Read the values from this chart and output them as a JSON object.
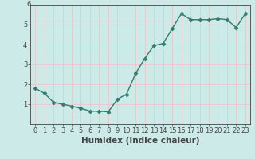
{
  "x": [
    0,
    1,
    2,
    3,
    4,
    5,
    6,
    7,
    8,
    9,
    10,
    11,
    12,
    13,
    14,
    15,
    16,
    17,
    18,
    19,
    20,
    21,
    22,
    23
  ],
  "y": [
    1.8,
    1.55,
    1.1,
    1.0,
    0.9,
    0.8,
    0.65,
    0.65,
    0.62,
    1.25,
    1.5,
    2.55,
    3.3,
    3.95,
    4.05,
    4.8,
    5.55,
    5.25,
    5.25,
    5.25,
    5.3,
    5.25,
    4.85,
    5.55
  ],
  "line_color": "#2e7d6e",
  "marker": "D",
  "marker_size": 2.5,
  "linewidth": 1.0,
  "xlabel": "Humidex (Indice chaleur)",
  "xlim": [
    -0.5,
    23.5
  ],
  "ylim": [
    0,
    6
  ],
  "yticks": [
    1,
    2,
    3,
    4,
    5
  ],
  "xticks": [
    0,
    1,
    2,
    3,
    4,
    5,
    6,
    7,
    8,
    9,
    10,
    11,
    12,
    13,
    14,
    15,
    16,
    17,
    18,
    19,
    20,
    21,
    22,
    23
  ],
  "bg_color": "#cceae7",
  "grid_color": "#e8c8c8",
  "axis_color": "#444444",
  "tick_fontsize": 6,
  "xlabel_fontsize": 7.5
}
